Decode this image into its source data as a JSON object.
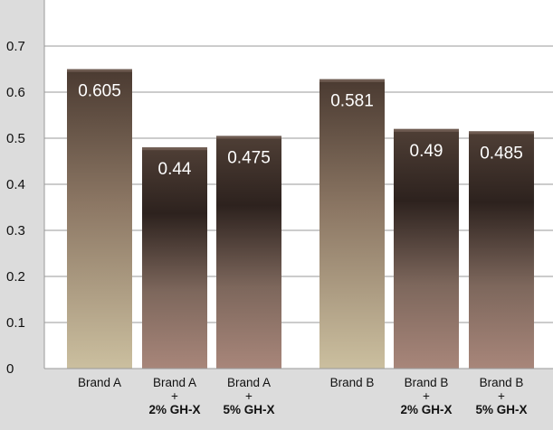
{
  "chart_data": {
    "type": "bar",
    "title": "",
    "xlabel": "",
    "ylabel": "",
    "ylim": [
      0,
      0.8
    ],
    "yticks": [
      "0",
      "0.1",
      "0.2",
      "0.3",
      "0.4",
      "0.5",
      "0.6",
      "0.7"
    ],
    "grid": true,
    "legend": "none",
    "categories": [
      {
        "lines": [
          "Brand A"
        ],
        "bold": [
          false
        ]
      },
      {
        "lines": [
          "Brand A",
          "+",
          "2% GH-X"
        ],
        "bold": [
          false,
          false,
          true
        ]
      },
      {
        "lines": [
          "Brand A",
          "+",
          "5% GH-X"
        ],
        "bold": [
          false,
          false,
          true
        ]
      },
      {
        "lines": [
          "Brand B"
        ],
        "bold": [
          false
        ]
      },
      {
        "lines": [
          "Brand B",
          "+",
          "2% GH-X"
        ],
        "bold": [
          false,
          false,
          true
        ]
      },
      {
        "lines": [
          "Brand B",
          "+",
          "5% GH-X"
        ],
        "bold": [
          false,
          false,
          true
        ]
      }
    ],
    "values": [
      0.605,
      0.44,
      0.475,
      0.581,
      0.49,
      0.485
    ],
    "bar_heights": [
      0.65,
      0.48,
      0.505,
      0.628,
      0.52,
      0.515
    ],
    "value_labels": [
      "0.605",
      "0.44",
      "0.475",
      "0.581",
      "0.49",
      "0.485"
    ],
    "colors": {
      "background": "#dcdcdc",
      "plot_background": "#ffffff",
      "grid": "#9a9a9a",
      "axis": "#9a9a9a",
      "bar_top": "#4a3a31",
      "bar_mid": "#7a6458",
      "bar_bottom_plain": "#cbbf9f",
      "bar_bottom_additive": "#a8867a",
      "bar_dark_band": "#2d221e",
      "label": "#ffffff"
    },
    "bar_styles": [
      "plain",
      "additive",
      "additive",
      "plain",
      "additive",
      "additive"
    ]
  }
}
